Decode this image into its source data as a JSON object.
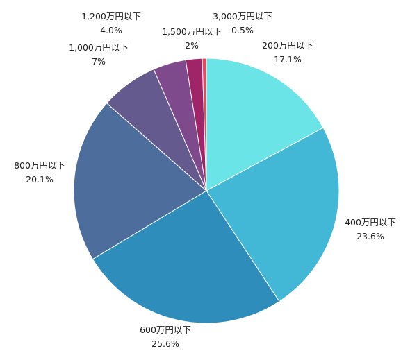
{
  "chart_data": {
    "type": "pie",
    "start": "12 o'clock",
    "direction": "clockwise",
    "slices": [
      {
        "label": "200万円以下",
        "value": 17.1,
        "value_label": "17.1%",
        "color": "#6BE4E8"
      },
      {
        "label": "400万円以下",
        "value": 23.6,
        "value_label": "23.6%",
        "color": "#43B7D6"
      },
      {
        "label": "600万円以下",
        "value": 25.6,
        "value_label": "25.6%",
        "color": "#2F8DBB"
      },
      {
        "label": "800万円以下",
        "value": 20.1,
        "value_label": "20.1%",
        "color": "#4D6E9C"
      },
      {
        "label": "1,000万円以下",
        "value": 7,
        "value_label": "7%",
        "color": "#645A8E"
      },
      {
        "label": "1,200万円以下",
        "value": 4.0,
        "value_label": "4.0%",
        "color": "#7E4A8C"
      },
      {
        "label": "1,500万円以下",
        "value": 2,
        "value_label": "2%",
        "color": "#A02468"
      },
      {
        "label": "3,000万円以下",
        "value": 0.5,
        "value_label": "0.5%",
        "color": "#E04E5E"
      }
    ]
  }
}
